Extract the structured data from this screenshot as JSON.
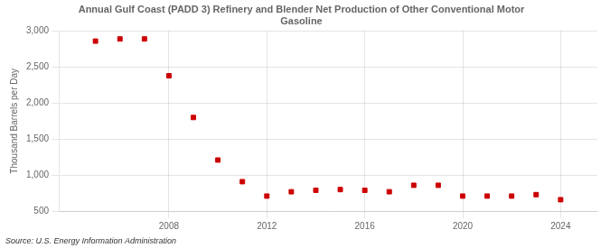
{
  "chart_data": {
    "type": "scatter",
    "title": "Annual Gulf Coast (PADD 3) Refinery and Blender Net Production of Other Conventional Motor\nGasoline",
    "ylabel": "Thousand Barrels per Day",
    "source": "Source: U.S. Energy Information Administration",
    "x": [
      2005,
      2006,
      2007,
      2008,
      2009,
      2010,
      2011,
      2012,
      2013,
      2014,
      2015,
      2016,
      2017,
      2018,
      2019,
      2020,
      2021,
      2022,
      2023,
      2024
    ],
    "values": [
      2860,
      2890,
      2890,
      2380,
      1800,
      1210,
      910,
      710,
      770,
      790,
      800,
      790,
      770,
      860,
      860,
      710,
      710,
      710,
      730,
      660
    ],
    "color": "#cc0000",
    "marker": "square",
    "xlim": [
      2003.5,
      2025.5
    ],
    "xticks": [
      2008,
      2012,
      2016,
      2020,
      2024
    ],
    "ylim": [
      500,
      3000
    ],
    "yticks": [
      500,
      {
        "value": 1000,
        "label": "1,000"
      },
      {
        "value": 1500,
        "label": "1,500"
      },
      {
        "value": 2000,
        "label": "2,000"
      },
      {
        "value": 2500,
        "label": "2,500"
      },
      {
        "value": 3000,
        "label": "3,000"
      }
    ],
    "grid": true
  }
}
